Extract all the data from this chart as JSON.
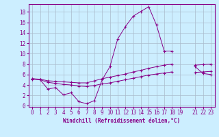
{
  "xlabel": "Windchill (Refroidissement éolien,°C)",
  "bg_color": "#cceeff",
  "line_color": "#880088",
  "grid_color": "#aabbcc",
  "x_ticks": [
    0,
    1,
    2,
    3,
    4,
    5,
    6,
    7,
    8,
    9,
    10,
    11,
    12,
    13,
    14,
    15,
    16,
    17,
    18,
    19,
    21,
    22,
    23
  ],
  "y_ticks": [
    0,
    2,
    4,
    6,
    8,
    10,
    12,
    14,
    16,
    18
  ],
  "xlim": [
    -0.5,
    23.5
  ],
  "ylim": [
    -0.2,
    19.5
  ],
  "line1_x": [
    0,
    1,
    2,
    3,
    4,
    5,
    6,
    7,
    8,
    9,
    10,
    11,
    12,
    13,
    14,
    15,
    16,
    17,
    18,
    21,
    22,
    23
  ],
  "line1_y": [
    5.2,
    5.0,
    3.2,
    3.5,
    2.1,
    2.5,
    0.8,
    0.4,
    1.0,
    5.0,
    7.5,
    12.8,
    15.2,
    17.2,
    18.1,
    19.0,
    15.5,
    10.5,
    10.5,
    7.5,
    6.2,
    6.0
  ],
  "line2_x": [
    0,
    1,
    2,
    3,
    4,
    5,
    6,
    7,
    8,
    9,
    10,
    11,
    12,
    13,
    14,
    15,
    16,
    17,
    18,
    21,
    22,
    23
  ],
  "line2_y": [
    5.2,
    5.1,
    4.8,
    4.7,
    4.6,
    4.5,
    4.4,
    4.4,
    4.8,
    5.2,
    5.5,
    5.8,
    6.1,
    6.5,
    6.8,
    7.2,
    7.5,
    7.8,
    8.0,
    7.8,
    7.9,
    8.0
  ],
  "line3_x": [
    0,
    1,
    2,
    3,
    4,
    5,
    6,
    7,
    8,
    9,
    10,
    11,
    12,
    13,
    14,
    15,
    16,
    17,
    18,
    21,
    22,
    23
  ],
  "line3_y": [
    5.1,
    5.0,
    4.5,
    4.3,
    4.1,
    4.0,
    3.8,
    3.7,
    3.9,
    4.2,
    4.4,
    4.7,
    5.0,
    5.3,
    5.6,
    5.9,
    6.1,
    6.3,
    6.5,
    6.4,
    6.5,
    6.6
  ],
  "line1_seg1_end": 18,
  "line1_seg2_start": 19,
  "figsize": [
    3.2,
    2.0
  ],
  "dpi": 100
}
